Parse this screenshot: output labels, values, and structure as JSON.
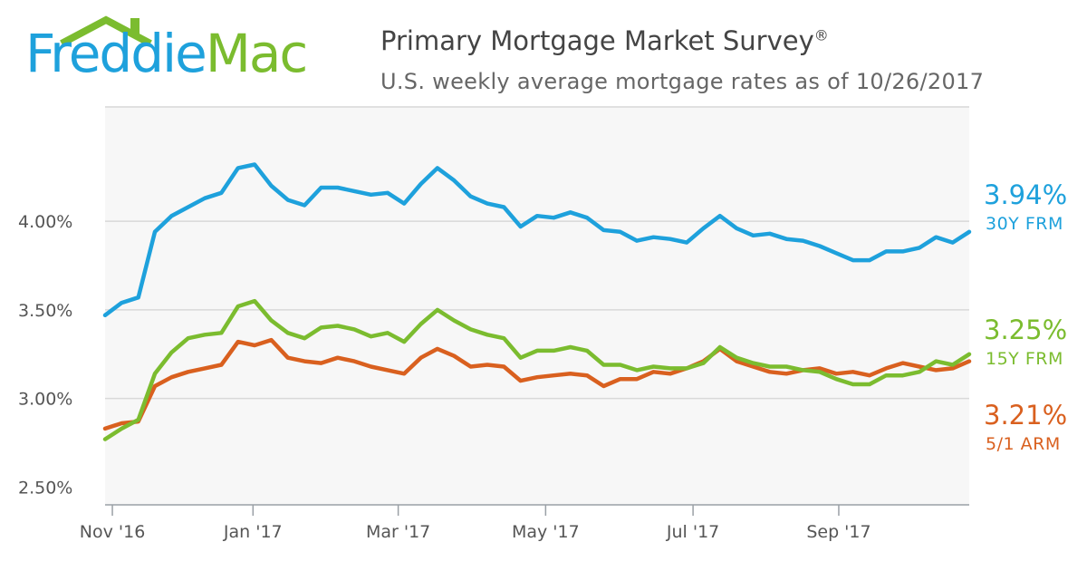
{
  "brand": {
    "name_part1": "Freddie",
    "name_part2": "Mac",
    "color_blue": "#1ea1dc",
    "color_green": "#7bbc2f"
  },
  "header": {
    "title": "Primary Mortgage Market Survey",
    "title_mark": "®",
    "subtitle": "U.S. weekly average mortgage rates as of 10/26/2017"
  },
  "chart_data": {
    "type": "line",
    "title": "Primary Mortgage Market Survey",
    "subtitle": "U.S. weekly average mortgage rates as of 10/26/2017",
    "xlabel": "",
    "ylabel": "",
    "ylim": [
      2.4,
      4.65
    ],
    "yticks": [
      2.5,
      3.0,
      3.5,
      4.0
    ],
    "ytick_labels": [
      "2.50%",
      "3.00%",
      "3.50%",
      "4.00%"
    ],
    "xtick_labels": [
      "Nov '16",
      "Jan '17",
      "Mar '17",
      "May '17",
      "Jul '17",
      "Sep '17"
    ],
    "xtick_weeks": [
      0.43,
      8.73,
      17.3,
      26.0,
      34.7,
      43.3
    ],
    "weeks_total": 51,
    "grid": true,
    "series": [
      {
        "name": "30Y FRM",
        "color": "#1ea1dc",
        "last_value_label": "3.94%",
        "values": [
          3.47,
          3.54,
          3.57,
          3.94,
          4.03,
          4.08,
          4.13,
          4.16,
          4.3,
          4.32,
          4.2,
          4.12,
          4.09,
          4.19,
          4.19,
          4.17,
          4.15,
          4.16,
          4.1,
          4.21,
          4.3,
          4.23,
          4.14,
          4.1,
          4.08,
          3.97,
          4.03,
          4.02,
          4.05,
          4.02,
          3.95,
          3.94,
          3.89,
          3.91,
          3.9,
          3.88,
          3.96,
          4.03,
          3.96,
          3.92,
          3.93,
          3.9,
          3.89,
          3.86,
          3.82,
          3.78,
          3.78,
          3.83,
          3.83,
          3.85,
          3.91,
          3.88,
          3.94
        ]
      },
      {
        "name": "15Y FRM",
        "color": "#7bbc2f",
        "last_value_label": "3.25%",
        "values": [
          2.77,
          2.83,
          2.88,
          3.14,
          3.26,
          3.34,
          3.36,
          3.37,
          3.52,
          3.55,
          3.44,
          3.37,
          3.34,
          3.4,
          3.41,
          3.39,
          3.35,
          3.37,
          3.32,
          3.42,
          3.5,
          3.44,
          3.39,
          3.36,
          3.34,
          3.23,
          3.27,
          3.27,
          3.29,
          3.27,
          3.19,
          3.19,
          3.16,
          3.18,
          3.17,
          3.17,
          3.2,
          3.29,
          3.23,
          3.2,
          3.18,
          3.18,
          3.16,
          3.15,
          3.11,
          3.08,
          3.08,
          3.13,
          3.13,
          3.15,
          3.21,
          3.19,
          3.25
        ]
      },
      {
        "name": "5/1 ARM",
        "color": "#d9601f",
        "last_value_label": "3.21%",
        "values": [
          2.83,
          2.86,
          2.87,
          3.07,
          3.12,
          3.15,
          3.17,
          3.19,
          3.32,
          3.3,
          3.33,
          3.23,
          3.21,
          3.2,
          3.23,
          3.21,
          3.18,
          3.16,
          3.14,
          3.23,
          3.28,
          3.24,
          3.18,
          3.19,
          3.18,
          3.1,
          3.12,
          3.13,
          3.14,
          3.13,
          3.07,
          3.11,
          3.11,
          3.15,
          3.14,
          3.17,
          3.21,
          3.28,
          3.21,
          3.18,
          3.15,
          3.14,
          3.16,
          3.17,
          3.14,
          3.15,
          3.13,
          3.17,
          3.2,
          3.18,
          3.16,
          3.17,
          3.21
        ]
      }
    ]
  }
}
